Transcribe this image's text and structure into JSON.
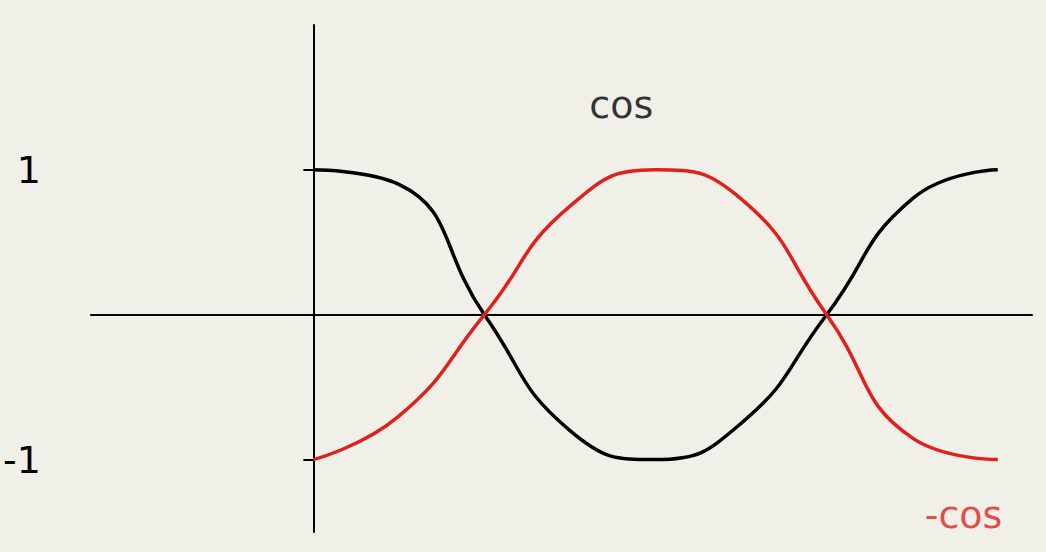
{
  "chart_data": {
    "type": "line",
    "tick_labels": "y",
    "grid": false,
    "xlim": [
      -1.3,
      4.2
    ],
    "ylim": [
      -1.5,
      2
    ],
    "yticks": [
      -1,
      1
    ],
    "x": [
      0,
      0.5,
      1,
      1.5,
      2,
      2.5,
      3,
      3.5,
      4
    ],
    "series": [
      {
        "color": "#000000",
        "values": [
          1,
          0.9,
          0,
          -0.8,
          -1,
          -0.75,
          0,
          0.8,
          1
        ]
      },
      {
        "color": "#e0201b",
        "values": [
          -1,
          -0.7,
          0,
          0.75,
          1,
          0.8,
          0,
          -0.85,
          -1
        ]
      }
    ],
    "annotations": [
      {
        "text": "cos",
        "x": 1.8,
        "y": 1.45,
        "color": "#000000"
      },
      {
        "text": "-cos",
        "x": 3.8,
        "y": -1.38,
        "color": "#e0201b"
      }
    ]
  }
}
